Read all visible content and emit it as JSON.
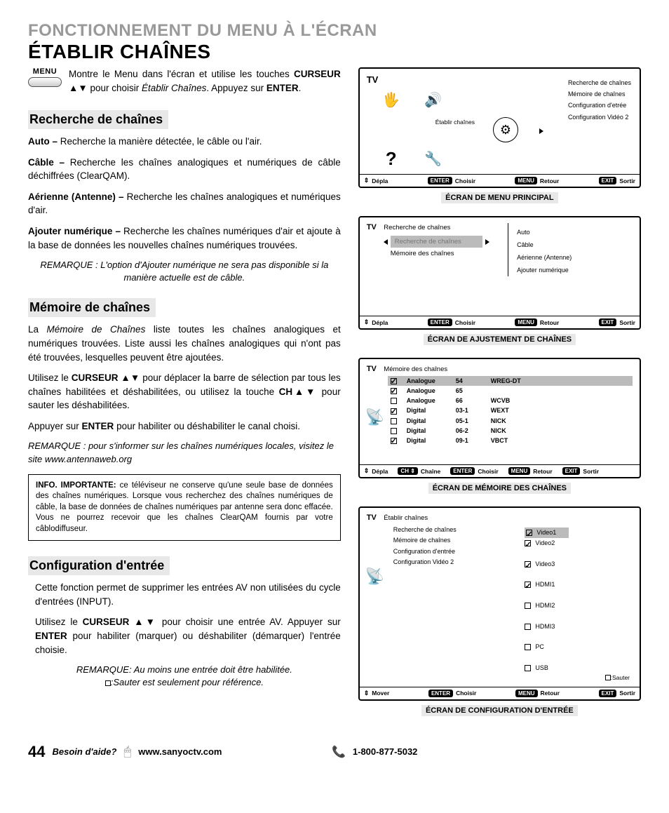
{
  "header": "FONCTIONNEMENT DU MENU À L'ÉCRAN",
  "title": "ÉTABLIR CHAÎNES",
  "menu_button": {
    "label": "MENU"
  },
  "intro": {
    "p1a": "Montre le Menu dans l'écran et utilise les touches ",
    "p1b": "CURSEUR ▲▼",
    "p1c": " pour choisir ",
    "p1d": "Établir Chaînes",
    "p1e": ". Appuyez sur ",
    "p1f": "ENTER",
    "p1g": "."
  },
  "sec1": {
    "heading": "Recherche de chaînes",
    "auto_b": "Auto –",
    "auto_t": " Recherche la manière détectée, le câble ou l'air.",
    "cable_b": "Câble –",
    "cable_t": " Recherche les chaînes analogiques et numériques de câble déchiffrées (ClearQAM).",
    "ant_b": "Aérienne (Antenne) –",
    "ant_t": " Recherche les chaînes analogiques et numériques d'air.",
    "add_b": "Ajouter numérique –",
    "add_t": " Recherche les chaînes numériques d'air et ajoute à la base de données les nouvelles chaînes numériques trouvées.",
    "note": "REMARQUE : L'option d'Ajouter numérique ne sera pas disponible si la manière actuelle est de câble."
  },
  "sec2": {
    "heading": "Mémoire de chaînes",
    "p1a": "La ",
    "p1b": "Mémoire de Chaînes",
    "p1c": " liste toutes les chaînes analogiques et numériques trouvées. Liste aussi les chaînes analogiques qui n'ont pas été trouvées, lesquelles peuvent être ajoutées.",
    "p2a": "Utilisez le ",
    "p2b": "CURSEUR ▲▼",
    "p2c": " pour déplacer la barre de sélection par tous les chaînes habilitées et déshabilitées, ou utilisez la touche ",
    "p2d": "CH▲▼",
    "p2e": " pour sauter les déshabilitées.",
    "p3a": "Appuyer sur ",
    "p3b": "ENTER",
    "p3c": " pour habiliter ou déshabiliter le canal choisi.",
    "note": "REMARQUE : pour s'informer sur les chaînes numériques locales, visitez le site www.antennaweb.org",
    "info_b": "INFO. IMPORTANTE:",
    "info_t": " ce téléviseur ne conserve qu'une seule base de données des chaînes numériques. Lorsque vous recherchez des chaînes numériques de câble, la base de données de chaînes numériques par antenne sera donc effacée. Vous ne pourrez recevoir que les chaînes ClearQAM fournis par votre câblodiffuseur."
  },
  "sec3": {
    "heading": "Configuration d'entrée",
    "p1": "Cette fonction permet de supprimer les entrées AV non utilisées du cycle d'entrées (INPUT).",
    "p2a": "Utilisez le ",
    "p2b": "CURSEUR ▲▼",
    "p2c": " pour choisir une entrée AV. Appuyer sur ",
    "p2d": "ENTER",
    "p2e": " pour habiliter (marquer) ou déshabiliter (démarquer) l'entrée choisie.",
    "note1": "REMARQUE: Au moins une entrée doit être habilitée.",
    "note2": ":Sauter est seulement pour référence."
  },
  "screens": {
    "main": {
      "tv": "TV",
      "etablir_caption": "Établir chaînes",
      "menu_items": [
        "Recherche de chaînes",
        "Mémoire de chaînes",
        "Configuration d'etrée",
        "Configuration Vidéo 2"
      ],
      "bar": {
        "depla": "Dépla",
        "enter": "ENTER",
        "choisir": "Choisir",
        "menu": "MENU",
        "retour": "Retour",
        "exit": "EXIT",
        "sortir": "Sortir"
      },
      "caption": "ÉCRAN DE MENU PRINCIPAL"
    },
    "adjust": {
      "tv": "TV",
      "title": "Recherche de chaînes",
      "hl": "Recherche de chaînes",
      "item": "Mémoire des chaînes",
      "right": [
        "Auto",
        "Câble",
        "Aérienne (Antenne)",
        "Ajouter numérique"
      ],
      "caption": "ÉCRAN DE AJUSTEMENT DE CHAÎNES"
    },
    "memory": {
      "tv": "TV",
      "title": "Mémoire des chaînes",
      "rows": [
        {
          "chk": true,
          "type": "Analogue",
          "num": "54",
          "name": "WREG-DT",
          "hl": true
        },
        {
          "chk": true,
          "type": "Analogue",
          "num": "65",
          "name": ""
        },
        {
          "chk": false,
          "type": "Analogue",
          "num": "66",
          "name": "WCVB"
        },
        {
          "chk": true,
          "type": "Digital",
          "num": "03-1",
          "name": "WEXT"
        },
        {
          "chk": false,
          "type": "Digital",
          "num": "05-1",
          "name": "NICK"
        },
        {
          "chk": false,
          "type": "Digital",
          "num": "06-2",
          "name": "NICK"
        },
        {
          "chk": true,
          "type": "Digital",
          "num": "09-1",
          "name": "VBCT"
        }
      ],
      "bar_ch": "CH",
      "bar_chaine": "Chaîne",
      "caption": "ÉCRAN DE  MÉMOIRE DES CHAÎNES"
    },
    "config": {
      "tv": "TV",
      "title": "Établir chaînes",
      "left": [
        "Recherche de chaînes",
        "Mémoire de chaînes",
        "Configuration d'entrée",
        "Configuration Vidéo 2"
      ],
      "right": [
        {
          "chk": true,
          "label": "Video1",
          "hl": true
        },
        {
          "chk": true,
          "label": "Video2"
        },
        {
          "chk": true,
          "label": "Video3"
        },
        {
          "chk": true,
          "label": "HDMI1"
        },
        {
          "chk": false,
          "label": "HDMI2"
        },
        {
          "chk": false,
          "label": "HDMI3"
        },
        {
          "chk": false,
          "label": "PC"
        },
        {
          "chk": false,
          "label": "USB"
        }
      ],
      "sauter": ":Sauter",
      "bar_mover": "Mover",
      "caption": "ÉCRAN DE CONFIGURATION D'ENTRÉE"
    }
  },
  "footer": {
    "page": "44",
    "need": "Besoin d'aide?",
    "url": "www.sanyoctv.com",
    "phone": "1-800-877-5032"
  }
}
